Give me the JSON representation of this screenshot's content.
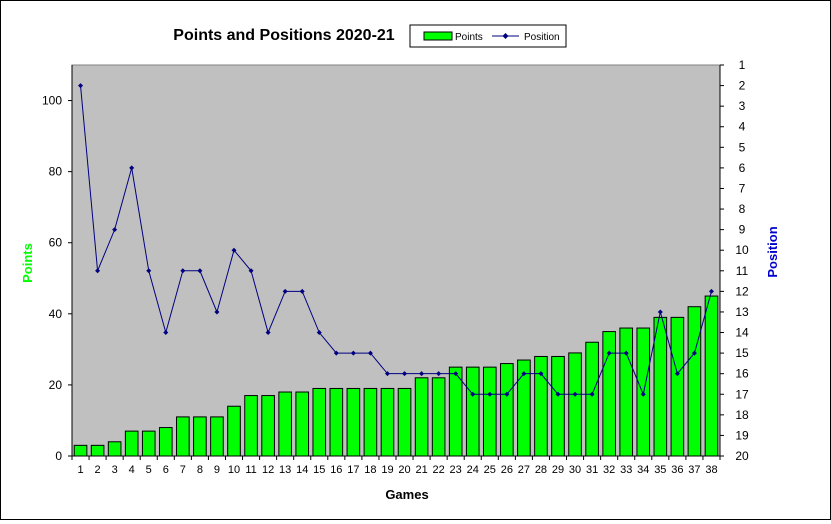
{
  "chart_data": {
    "type": "bar",
    "title": "Points and Positions 2020-21",
    "xlabel": "Games",
    "ylabel": "Points",
    "y2label": "Position",
    "ylim": [
      0,
      110
    ],
    "y2lim": [
      1,
      20
    ],
    "y2_inverted": true,
    "yticks": [
      0,
      20,
      40,
      60,
      80,
      100
    ],
    "y2ticks": [
      1,
      2,
      3,
      4,
      5,
      6,
      7,
      8,
      9,
      10,
      11,
      12,
      13,
      14,
      15,
      16,
      17,
      18,
      19,
      20
    ],
    "grid": false,
    "legend_position": "top",
    "colors": {
      "points": "#00ff00",
      "position": "#000080",
      "plot_bg": "#c0c0c0",
      "ylabel": "#00ff00",
      "y2label": "#0000cc"
    },
    "categories": [
      "1",
      "2",
      "3",
      "4",
      "5",
      "6",
      "7",
      "8",
      "9",
      "10",
      "11",
      "12",
      "13",
      "14",
      "15",
      "16",
      "17",
      "18",
      "19",
      "20",
      "21",
      "22",
      "23",
      "24",
      "25",
      "26",
      "27",
      "28",
      "29",
      "30",
      "31",
      "32",
      "33",
      "34",
      "35",
      "36",
      "37",
      "38"
    ],
    "series": [
      {
        "name": "Points",
        "type": "bar",
        "axis": "left",
        "values": [
          3,
          3,
          4,
          7,
          7,
          8,
          11,
          11,
          11,
          14,
          17,
          17,
          18,
          18,
          19,
          19,
          19,
          19,
          19,
          19,
          22,
          22,
          25,
          25,
          25,
          26,
          27,
          28,
          28,
          29,
          32,
          35,
          36,
          36,
          39,
          39,
          42,
          45
        ]
      },
      {
        "name": "Position",
        "type": "line",
        "axis": "right",
        "values": [
          2,
          11,
          9,
          6,
          11,
          14,
          11,
          11,
          13,
          10,
          11,
          14,
          12,
          12,
          14,
          15,
          15,
          15,
          16,
          16,
          16,
          16,
          16,
          17,
          17,
          17,
          16,
          16,
          17,
          17,
          17,
          15,
          15,
          17,
          13,
          16,
          15,
          12
        ]
      }
    ]
  }
}
